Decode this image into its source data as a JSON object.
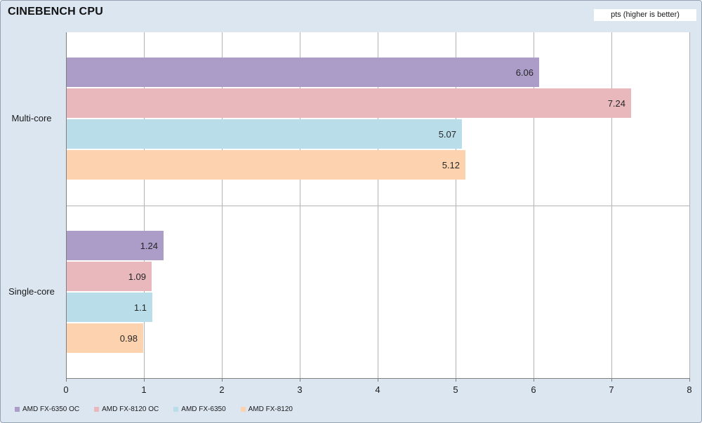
{
  "title": "CINEBENCH CPU",
  "units_label": "pts (higher is better)",
  "colors": {
    "background": "#dce6f1",
    "plot_background": "#ffffff",
    "gridline": "#b3b3b3",
    "axis_line": "#7f7f7f",
    "text": "#1a1a1a"
  },
  "chart_data": {
    "type": "bar",
    "orientation": "horizontal",
    "title": "CINEBENCH CPU",
    "xlabel": "",
    "ylabel": "",
    "xlim": [
      0,
      8
    ],
    "x_ticks": [
      0,
      1,
      2,
      3,
      4,
      5,
      6,
      7,
      8
    ],
    "grid": true,
    "legend_position": "bottom-left",
    "categories": [
      "Multi-core",
      "Single-core"
    ],
    "series": [
      {
        "name": "AMD FX-6350 OC",
        "color": "#ab9cc8",
        "values": [
          6.06,
          1.24
        ],
        "labels": [
          "6.06",
          "1.24"
        ]
      },
      {
        "name": "AMD FX-8120 OC",
        "color": "#e8b8bd",
        "values": [
          7.24,
          1.09
        ],
        "labels": [
          "7.24",
          "1.09"
        ]
      },
      {
        "name": "AMD FX-6350",
        "color": "#b9dde9",
        "values": [
          5.07,
          1.1
        ],
        "labels": [
          "5.07",
          "1.1"
        ]
      },
      {
        "name": "AMD FX-8120",
        "color": "#fcd3ae",
        "values": [
          5.12,
          0.98
        ],
        "labels": [
          "5.12",
          "0.98"
        ]
      }
    ]
  }
}
